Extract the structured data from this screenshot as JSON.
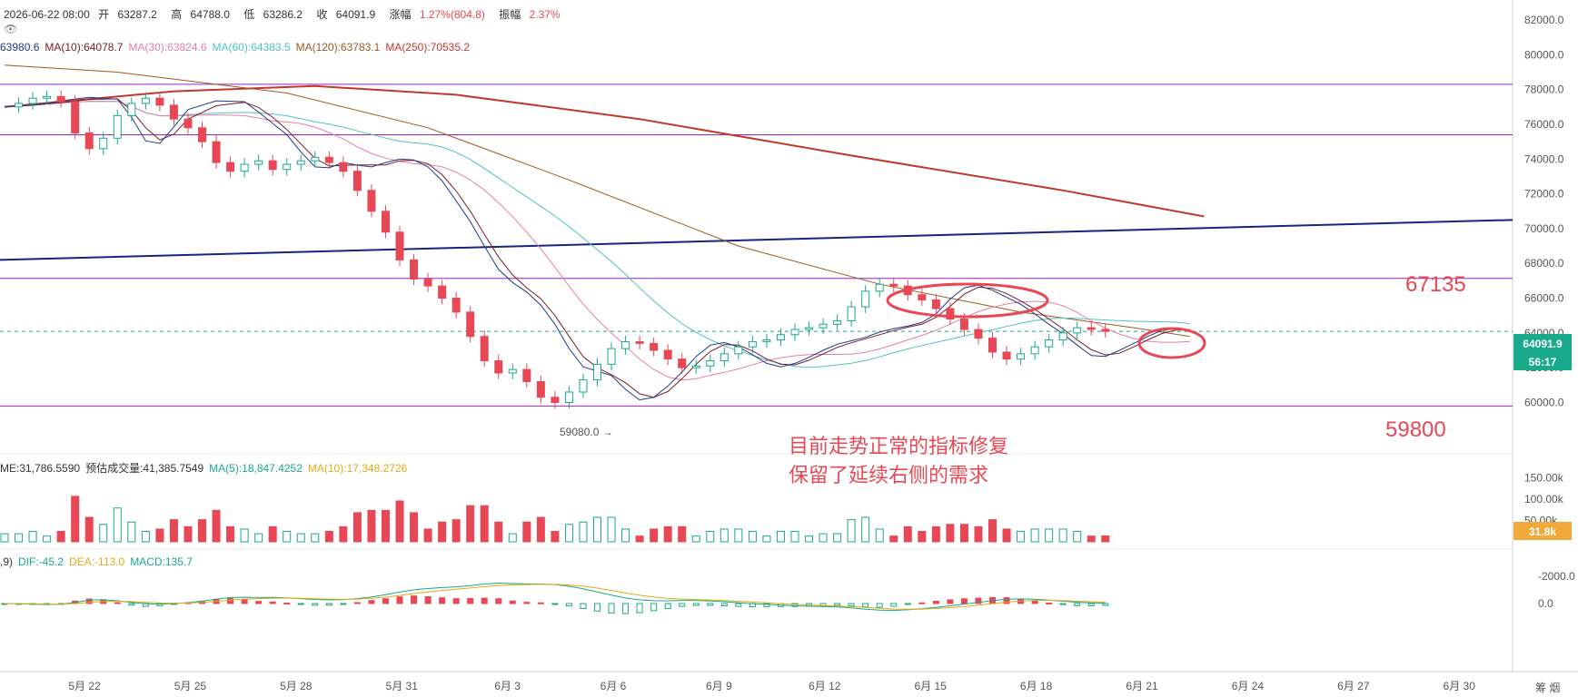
{
  "header": {
    "datetime": "2026-06-22 08:00",
    "open_label": "开",
    "open": "63287.2",
    "high_label": "高",
    "high": "64788.0",
    "low_label": "低",
    "low": "63286.2",
    "close_label": "收",
    "close": "64091.9",
    "change_label": "涨幅",
    "change": "1.27%(804.8)",
    "amp_label": "振幅",
    "amp": "2.37%",
    "icon": "eye-slash-icon"
  },
  "ma_legend": [
    {
      "text": "63980.6",
      "color": "#1e3a8a"
    },
    {
      "text": "MA(10):64078.7",
      "color": "#7a1c2a"
    },
    {
      "text": "MA(30):63824.6",
      "color": "#e77fa6"
    },
    {
      "text": "MA(60):64383.5",
      "color": "#4fc3c0"
    },
    {
      "text": "MA(120):63783.1",
      "color": "#9c5a20"
    },
    {
      "text": "MA(250):70535.2",
      "color": "#c0392b"
    }
  ],
  "vol_legend": [
    {
      "text": "ME:31,786.5590",
      "color": "#333333"
    },
    {
      "text": "预估成交量:41,385.7549",
      "color": "#333333"
    },
    {
      "text": "MA(5):18,847.4252",
      "color": "#19a98b"
    },
    {
      "text": "MA(10):17,348.2726",
      "color": "#e6a817"
    }
  ],
  "macd_legend": [
    {
      "text": ",9)",
      "color": "#333333"
    },
    {
      "text": "DIF:-45.2",
      "color": "#19a98b"
    },
    {
      "text": "DEA:-113.0",
      "color": "#e6a817"
    },
    {
      "text": "MACD:135.7",
      "color": "#19a98b"
    }
  ],
  "price_axis": [
    "82000.0",
    "80000.0",
    "78000.0",
    "76000.0",
    "74000.0",
    "72000.0",
    "70000.0",
    "68000.0",
    "66000.0",
    "64000.0",
    "62000.0",
    "60000.0"
  ],
  "volume_axis": [
    "150.00k",
    "100.00k",
    "50.00k"
  ],
  "macd_axis": [
    "0.0",
    "-2000.0"
  ],
  "x_ticks": [
    "5月 22",
    "5月 25",
    "5月 28",
    "5月 31",
    "6月 3",
    "6月 6",
    "6月 9",
    "6月 12",
    "6月 15",
    "6月 18",
    "6月 21",
    "6月 24",
    "6月 27",
    "6月 30"
  ],
  "price_badge": "64091.9",
  "timer_badge": "56:17",
  "volume_badge": "31.8k",
  "low_marker": "59080.0",
  "level_labels": {
    "upper": "67135",
    "lower": "59800"
  },
  "annotation": [
    "目前走势正常的指标修复",
    "保留了延续右侧的需求"
  ],
  "corner_text": "筹 烟",
  "chart_data": {
    "type": "candlestick",
    "title": "",
    "price_ylim": [
      59000,
      82500
    ],
    "horizontal_levels": [
      78300,
      75400,
      67135,
      59800
    ],
    "dashed_level": 64091.9,
    "trendline": {
      "from": {
        "date": "5月 19",
        "price": 68200
      },
      "to": {
        "date": "6月 30",
        "price": 70500
      }
    },
    "ma250_points": [
      [
        0,
        77000
      ],
      [
        12,
        77900
      ],
      [
        22,
        78200
      ],
      [
        32,
        77700
      ],
      [
        45,
        76300
      ],
      [
        60,
        74200
      ],
      [
        75,
        72200
      ],
      [
        85,
        70700
      ]
    ],
    "ma120_points": [
      [
        0,
        79400
      ],
      [
        8,
        79000
      ],
      [
        20,
        77800
      ],
      [
        30,
        75800
      ],
      [
        40,
        72800
      ],
      [
        52,
        69000
      ],
      [
        62,
        66800
      ],
      [
        72,
        65200
      ],
      [
        80,
        64300
      ],
      [
        84,
        63800
      ]
    ],
    "price_path": [
      [
        0,
        77000
      ],
      [
        2,
        77200
      ],
      [
        4,
        77500
      ],
      [
        6,
        77600
      ],
      [
        8,
        77300
      ],
      [
        9,
        75500
      ],
      [
        10,
        74600
      ],
      [
        11,
        75200
      ],
      [
        12,
        76500
      ],
      [
        13,
        77200
      ],
      [
        15,
        77500
      ],
      [
        17,
        77100
      ],
      [
        18,
        76300
      ],
      [
        19,
        75800
      ],
      [
        20,
        75000
      ],
      [
        21,
        73800
      ],
      [
        22,
        73300
      ],
      [
        23,
        73700
      ],
      [
        24,
        73900
      ],
      [
        25,
        73400
      ],
      [
        26,
        73700
      ],
      [
        27,
        73900
      ],
      [
        28,
        74100
      ],
      [
        29,
        73800
      ],
      [
        30,
        73300
      ],
      [
        31,
        72200
      ],
      [
        32,
        71000
      ],
      [
        33,
        69800
      ],
      [
        34,
        68200
      ],
      [
        35,
        67100
      ],
      [
        36,
        66700
      ],
      [
        37,
        66000
      ],
      [
        38,
        65200
      ],
      [
        39,
        63800
      ],
      [
        40,
        62400
      ],
      [
        41,
        61700
      ],
      [
        42,
        61900
      ],
      [
        43,
        61200
      ],
      [
        44,
        60300
      ],
      [
        45,
        60000
      ],
      [
        46,
        60600
      ],
      [
        47,
        61300
      ],
      [
        48,
        62200
      ],
      [
        49,
        63100
      ],
      [
        50,
        63500
      ],
      [
        51,
        63400
      ],
      [
        52,
        63000
      ],
      [
        53,
        62500
      ],
      [
        54,
        62000
      ],
      [
        55,
        62100
      ],
      [
        56,
        62400
      ],
      [
        57,
        62800
      ],
      [
        58,
        63200
      ],
      [
        59,
        63500
      ],
      [
        60,
        63600
      ],
      [
        61,
        63900
      ],
      [
        62,
        64200
      ],
      [
        63,
        64300
      ],
      [
        64,
        64500
      ],
      [
        65,
        64700
      ],
      [
        66,
        65500
      ],
      [
        67,
        66400
      ],
      [
        68,
        66800
      ],
      [
        69,
        66700
      ],
      [
        70,
        66200
      ],
      [
        71,
        65900
      ],
      [
        72,
        65400
      ],
      [
        73,
        64800
      ],
      [
        74,
        64200
      ],
      [
        75,
        63700
      ],
      [
        76,
        62900
      ],
      [
        77,
        62500
      ],
      [
        78,
        62800
      ],
      [
        79,
        63200
      ],
      [
        80,
        63600
      ],
      [
        81,
        64000
      ],
      [
        82,
        64300
      ],
      [
        83,
        64200
      ],
      [
        84,
        64091.9
      ]
    ],
    "volume_ylim": [
      0,
      175000
    ],
    "volume_ma5": [
      18847.4252
    ],
    "volume_ma10": [
      17348.2726
    ],
    "macd": {
      "dif": -45.2,
      "dea": -113.0,
      "hist": 135.7,
      "ylim": [
        -2500,
        1200
      ]
    }
  }
}
